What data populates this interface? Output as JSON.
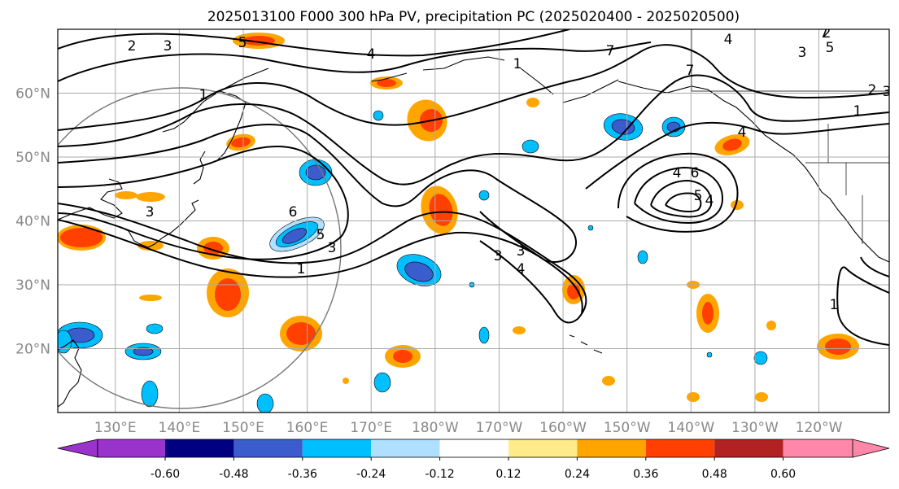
{
  "title": "2025013100 F000 300 hPa PV, precipitation PC (2025020400 - 2025020500)",
  "map": {
    "lon_labels": [
      "130°E",
      "140°E",
      "150°E",
      "160°E",
      "170°E",
      "180°W",
      "170°W",
      "160°W",
      "150°W",
      "140°W",
      "130°W",
      "120°W"
    ],
    "lat_labels": [
      "60°N",
      "50°N",
      "40°N",
      "30°N",
      "20°N"
    ],
    "lon_values": [
      130,
      140,
      150,
      160,
      170,
      180,
      190,
      200,
      210,
      220,
      230,
      240
    ],
    "lat_values": [
      60,
      50,
      40,
      30,
      20
    ],
    "lon_range": [
      121,
      251
    ],
    "lat_range": [
      10,
      70
    ],
    "grid": true,
    "contour_field": "300 hPa PV",
    "shaded_field": "precipitation PC",
    "contour_labels": [
      "2",
      "3",
      "5",
      "4",
      "1",
      "1",
      "7",
      "4",
      "2",
      "3",
      "1",
      "3",
      "3",
      "4",
      "6",
      "5",
      "4",
      "6",
      "5",
      "3",
      "1",
      "3",
      "4",
      "2",
      "1",
      "7",
      "3",
      "7",
      "4",
      "5"
    ]
  },
  "colorbar": {
    "ticks": [
      "-0.60",
      "-0.48",
      "-0.36",
      "-0.24",
      "-0.12",
      "0.12",
      "0.24",
      "0.36",
      "0.48",
      "0.60"
    ],
    "colors": [
      "#9933cc",
      "#000080",
      "#3a5ccc",
      "#00bfff",
      "#b0e0ff",
      "#ffffff",
      "#ffeb8a",
      "#ffa500",
      "#ff4000",
      "#b22222",
      "#ff88aa"
    ],
    "extend": "both"
  }
}
